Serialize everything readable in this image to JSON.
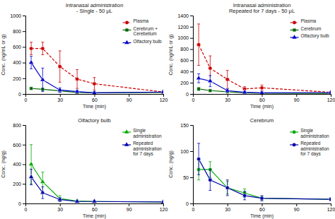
{
  "chart_data": [
    {
      "type": "line",
      "title": "Intranasal administration\n- Single - 50 μL",
      "xlabel": "Time (min)",
      "ylabel": "Conc. (ng/mL or g)",
      "xlim": [
        0,
        120
      ],
      "xticks": [
        0,
        30,
        60,
        90,
        120
      ],
      "ylim": [
        0,
        1000
      ],
      "yticks": [
        0,
        200,
        400,
        600,
        800,
        1000
      ],
      "legend": "upper right",
      "x": [
        5,
        15,
        30,
        45,
        60,
        120
      ],
      "series": [
        {
          "name": "Plasma",
          "color": "#cc0000",
          "marker": "circle",
          "line_style": "dashed",
          "values": [
            580,
            580,
            350,
            190,
            130,
            25
          ],
          "errors": [
            80,
            80,
            200,
            120,
            80,
            10
          ]
        },
        {
          "name": "Cerebrum +\nCerebellum",
          "color": "#006600",
          "marker": "square",
          "line_style": "solid",
          "values": [
            70,
            60,
            40,
            20,
            15,
            20
          ],
          "errors": [
            10,
            10,
            10,
            5,
            5,
            5
          ]
        },
        {
          "name": "Olfactory bulb",
          "color": "#0000cc",
          "marker": "triangle-up",
          "line_style": "solid",
          "values": [
            400,
            180,
            50,
            30,
            15,
            25
          ],
          "errors": [
            80,
            150,
            30,
            15,
            5,
            8
          ]
        }
      ]
    },
    {
      "type": "line",
      "title": "Intranasal administration\nRepeated for 7 days - 50 μL",
      "xlabel": "Time (min)",
      "ylabel": "Conc. (ng/mL or g)",
      "xlim": [
        0,
        120
      ],
      "xticks": [
        0,
        30,
        60,
        90,
        120
      ],
      "ylim": [
        0,
        1400
      ],
      "yticks": [
        0,
        200,
        400,
        600,
        800,
        1000,
        1200,
        1400
      ],
      "legend": "upper right",
      "x": [
        5,
        15,
        30,
        45,
        60,
        120
      ],
      "series": [
        {
          "name": "Plasma",
          "color": "#cc0000",
          "marker": "circle",
          "line_style": "dashed",
          "values": [
            880,
            460,
            260,
            90,
            110,
            30
          ],
          "errors": [
            370,
            220,
            160,
            40,
            50,
            10
          ]
        },
        {
          "name": "Cerebrum",
          "color": "#006600",
          "marker": "square",
          "line_style": "solid",
          "values": [
            90,
            60,
            40,
            20,
            15,
            10
          ],
          "errors": [
            30,
            20,
            15,
            5,
            5,
            3
          ]
        },
        {
          "name": "Olfactory bulb",
          "color": "#0000cc",
          "marker": "triangle-up",
          "line_style": "solid",
          "values": [
            280,
            230,
            60,
            30,
            20,
            25
          ],
          "errors": [
            80,
            100,
            30,
            10,
            8,
            8
          ]
        }
      ]
    },
    {
      "type": "line",
      "title": "Olfactory bulb",
      "xlabel": "Time (min)",
      "ylabel": "Conc. (ng/g)",
      "xlim": [
        0,
        120
      ],
      "xticks": [
        0,
        30,
        60,
        90,
        120
      ],
      "ylim": [
        0,
        800
      ],
      "yticks": [
        0,
        200,
        400,
        600,
        800
      ],
      "legend": "upper right",
      "x": [
        5,
        15,
        30,
        45,
        60,
        120
      ],
      "series": [
        {
          "name": "Single\nadministration",
          "color": "#00aa00",
          "marker": "triangle-up",
          "line_style": "solid",
          "values": [
            400,
            220,
            50,
            25,
            20,
            15
          ],
          "errors": [
            200,
            100,
            30,
            10,
            8,
            5
          ]
        },
        {
          "name": "Repeated\nadministration\nfor 7 days",
          "color": "#0000aa",
          "marker": "triangle-up",
          "line_style": "solid",
          "values": [
            270,
            110,
            40,
            20,
            20,
            15
          ],
          "errors": [
            80,
            60,
            20,
            8,
            8,
            5
          ]
        }
      ]
    },
    {
      "type": "line",
      "title": "Cerebrum",
      "xlabel": "Time (min)",
      "ylabel": "Conc. (ng/g)",
      "xlim": [
        0,
        120
      ],
      "xticks": [
        0,
        30,
        60,
        90,
        120
      ],
      "ylim": [
        0,
        150
      ],
      "yticks": [
        0,
        50,
        100,
        150
      ],
      "legend": "upper right",
      "x": [
        5,
        15,
        30,
        45,
        60,
        120
      ],
      "series": [
        {
          "name": "Single\nadministration",
          "color": "#00aa00",
          "marker": "circle",
          "line_style": "solid",
          "values": [
            65,
            65,
            30,
            20,
            10,
            8
          ],
          "errors": [
            20,
            15,
            12,
            8,
            4,
            3
          ]
        },
        {
          "name": "Repeated\nadministration\nfor 7 days",
          "color": "#0000aa",
          "marker": "circle",
          "line_style": "solid",
          "values": [
            85,
            45,
            30,
            15,
            10,
            8
          ],
          "errors": [
            30,
            20,
            15,
            8,
            5,
            3
          ]
        }
      ]
    }
  ]
}
